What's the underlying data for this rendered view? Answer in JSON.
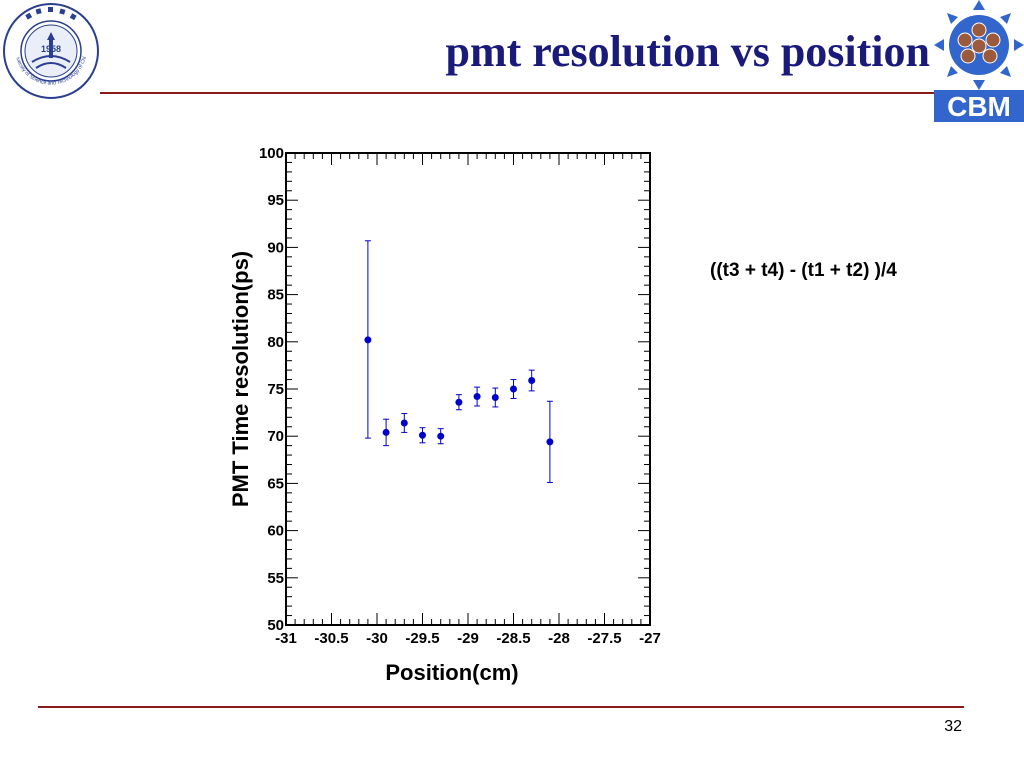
{
  "slide": {
    "title": "pmt resolution vs position",
    "formula": "((t3 + t4) - (t1 + t2) )/4",
    "page_number": "32"
  },
  "logos": {
    "left": {
      "year": "1958",
      "text": "University of Science and Technology of China",
      "icon": "university-seal"
    },
    "right": {
      "text": "CBM",
      "icon": "cbm-detector-logo"
    }
  },
  "colors": {
    "title": "#1a1a7a",
    "rule": "#8b1a1a",
    "series": "#0000cc",
    "cbm_blue": "#3366cc"
  },
  "chart_data": {
    "type": "scatter",
    "title": "",
    "xlabel": "Position(cm)",
    "ylabel": "PMT Time resolution(ps)",
    "xlim": [
      -31,
      -27
    ],
    "ylim": [
      50,
      100
    ],
    "x_ticks": [
      "-31",
      "-30.5",
      "-30",
      "-29.5",
      "-29",
      "-28.5",
      "-28",
      "-27.5",
      "-27"
    ],
    "y_ticks": [
      "50",
      "55",
      "60",
      "65",
      "70",
      "75",
      "80",
      "85",
      "90",
      "95",
      "100"
    ],
    "grid": false,
    "legend": "none",
    "series": [
      {
        "points": [
          {
            "x": -30.1,
            "y": 80.2,
            "err_low": 10.4,
            "err_high": 10.5
          },
          {
            "x": -29.9,
            "y": 70.4,
            "err_low": 1.4,
            "err_high": 1.4
          },
          {
            "x": -29.7,
            "y": 71.4,
            "err_low": 1.0,
            "err_high": 1.0
          },
          {
            "x": -29.5,
            "y": 70.1,
            "err_low": 0.8,
            "err_high": 0.8
          },
          {
            "x": -29.3,
            "y": 70.0,
            "err_low": 0.8,
            "err_high": 0.8
          },
          {
            "x": -29.1,
            "y": 73.6,
            "err_low": 0.8,
            "err_high": 0.8
          },
          {
            "x": -28.9,
            "y": 74.2,
            "err_low": 1.0,
            "err_high": 1.0
          },
          {
            "x": -28.7,
            "y": 74.1,
            "err_low": 1.0,
            "err_high": 1.0
          },
          {
            "x": -28.5,
            "y": 75.0,
            "err_low": 1.0,
            "err_high": 1.0
          },
          {
            "x": -28.3,
            "y": 75.9,
            "err_low": 1.1,
            "err_high": 1.1
          },
          {
            "x": -28.1,
            "y": 69.4,
            "err_low": 4.3,
            "err_high": 4.3
          }
        ]
      }
    ]
  }
}
